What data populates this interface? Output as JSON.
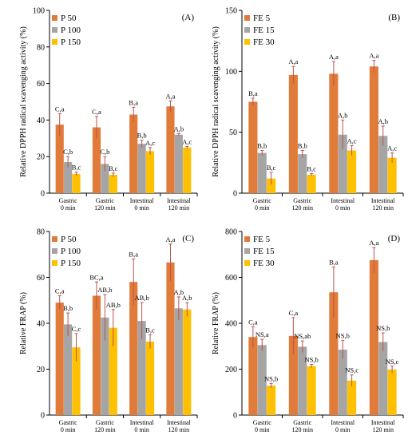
{
  "chart_data": [
    {
      "type": "bar",
      "panel_label": "(A)",
      "ylabel": "Relative DPPH radical scavenging activity (%)",
      "ylim": [
        0,
        100
      ],
      "yticks": [
        0,
        20,
        40,
        60,
        80,
        100
      ],
      "categories": [
        [
          "Gastric",
          "0 min"
        ],
        [
          "Gastric",
          "120 min"
        ],
        [
          "Intestinal",
          "0 min"
        ],
        [
          "Intestinal",
          "120 min"
        ]
      ],
      "legend_position": "top-left",
      "series": [
        {
          "name": "P 50",
          "color": "#e07b39",
          "values": [
            37.5,
            36,
            43,
            47.5
          ],
          "errors": [
            6,
            6,
            4,
            3
          ],
          "labels": [
            "C,a",
            "C,a",
            "B,a",
            "A,a"
          ]
        },
        {
          "name": "P 100",
          "color": "#a5a5a5",
          "values": [
            17,
            16,
            27,
            32
          ],
          "errors": [
            3,
            4,
            2,
            0.6
          ],
          "labels": [
            "C,b",
            "C,b",
            "B,b",
            "A,b"
          ]
        },
        {
          "name": "P 150",
          "color": "#ffc000",
          "values": [
            10.5,
            10,
            23,
            25
          ],
          "errors": [
            1,
            1,
            2,
            0.6
          ],
          "labels": [
            "B,c",
            "B,c",
            "A,c",
            "A,c"
          ]
        }
      ]
    },
    {
      "type": "bar",
      "panel_label": "(B)",
      "ylabel": "Relative DPPH radical scavenging activity (%)",
      "ylim": [
        0,
        150
      ],
      "yticks": [
        0,
        50,
        100,
        150
      ],
      "categories": [
        [
          "Gastric",
          "0 min"
        ],
        [
          "Gastric",
          "120 min"
        ],
        [
          "Intestinal",
          "0 min"
        ],
        [
          "Intestinal",
          "120 min"
        ]
      ],
      "legend_position": "top-left",
      "series": [
        {
          "name": "FE 5",
          "color": "#e07b39",
          "values": [
            75,
            97,
            98,
            104
          ],
          "errors": [
            3,
            7,
            10,
            5
          ],
          "labels": [
            "B,a",
            "A,a",
            "A,a",
            "A,a"
          ]
        },
        {
          "name": "FE 15",
          "color": "#a5a5a5",
          "values": [
            33,
            32,
            48,
            47
          ],
          "errors": [
            2,
            3,
            12,
            8
          ],
          "labels": [
            "B,b",
            "B,b",
            "A,b",
            "A,b"
          ]
        },
        {
          "name": "FE 30",
          "color": "#ffc000",
          "values": [
            12,
            15,
            35,
            29
          ],
          "errors": [
            5,
            1,
            4,
            4
          ],
          "labels": [
            "B,c",
            "B,c",
            "A,c",
            "A,c"
          ]
        }
      ]
    },
    {
      "type": "bar",
      "panel_label": "(C)",
      "ylabel": "Relative FRAP (%)",
      "ylim": [
        0,
        80
      ],
      "yticks": [
        0,
        20,
        40,
        60,
        80
      ],
      "categories": [
        [
          "Gastric",
          "0 min"
        ],
        [
          "Gastric",
          "120 min"
        ],
        [
          "Intestinal",
          "0 min"
        ],
        [
          "Intestinal",
          "120 min"
        ]
      ],
      "legend_position": "top-left",
      "series": [
        {
          "name": "P 50",
          "color": "#e07b39",
          "values": [
            49,
            52,
            58,
            66.5
          ],
          "errors": [
            3,
            6,
            10,
            8
          ],
          "labels": [
            "C,a",
            "BC,a",
            "B,a",
            "A,a"
          ]
        },
        {
          "name": "P 100",
          "color": "#a5a5a5",
          "values": [
            39.5,
            42.5,
            41,
            46.5
          ],
          "errors": [
            5,
            10,
            8,
            5
          ],
          "labels": [
            "B,b",
            "AB,b",
            "AB,b",
            "A,b"
          ]
        },
        {
          "name": "P 150",
          "color": "#ffc000",
          "values": [
            29.5,
            38,
            32,
            46
          ],
          "errors": [
            6,
            8,
            3,
            3
          ],
          "labels": [
            "C,c",
            "AB,b",
            "B,c",
            "A,b"
          ]
        }
      ]
    },
    {
      "type": "bar",
      "panel_label": "(D)",
      "ylabel": "Relative FRAP (%)",
      "ylim": [
        0,
        800
      ],
      "yticks": [
        0,
        200,
        400,
        600,
        800
      ],
      "categories": [
        [
          "Gastric",
          "0 min"
        ],
        [
          "Gastric",
          "120 min"
        ],
        [
          "Intestinal",
          "0 min"
        ],
        [
          "Intestinal",
          "120 min"
        ]
      ],
      "legend_position": "top-left",
      "series": [
        {
          "name": "FE 5",
          "color": "#e07b39",
          "values": [
            340,
            345,
            535,
            675
          ],
          "errors": [
            45,
            80,
            110,
            55
          ],
          "labels": [
            "C,a",
            "C,a",
            "B,a",
            "A,a"
          ]
        },
        {
          "name": "FE 15",
          "color": "#a5a5a5",
          "values": [
            305,
            298,
            285,
            318
          ],
          "errors": [
            25,
            25,
            40,
            40
          ],
          "labels": [
            "NS,a",
            "NS,ab",
            "NS,b",
            "NS,b"
          ]
        },
        {
          "name": "FE 30",
          "color": "#ffc000",
          "values": [
            128,
            213,
            150,
            198
          ],
          "errors": [
            10,
            8,
            25,
            15
          ],
          "labels": [
            "NS,b",
            "NS,b",
            "NS,c",
            "NS,c"
          ]
        }
      ]
    }
  ]
}
